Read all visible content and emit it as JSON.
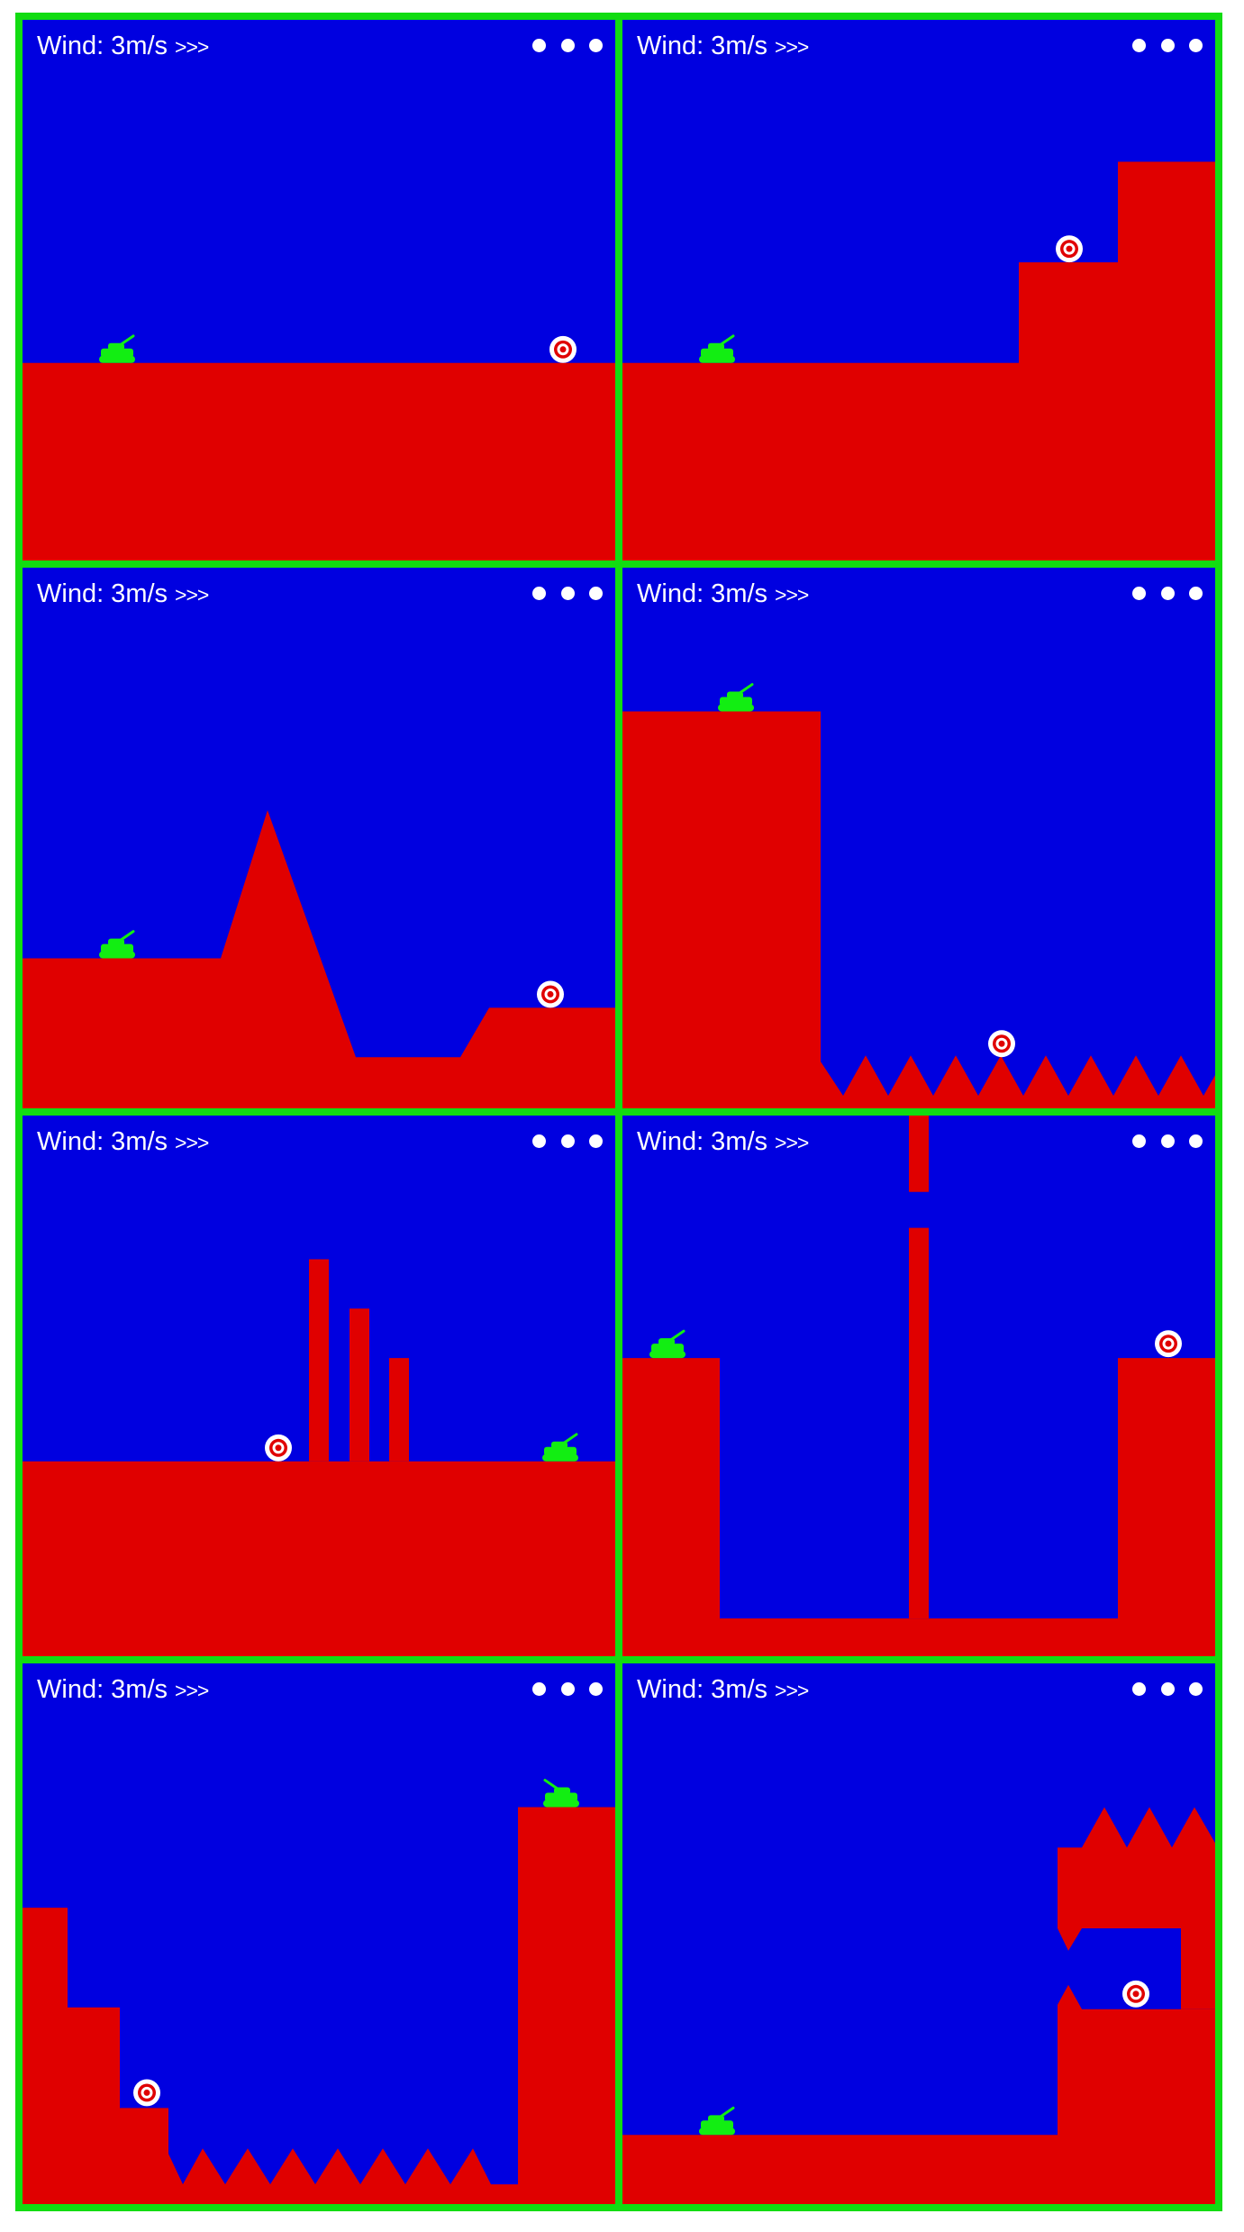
{
  "colors": {
    "border": "#12dc12",
    "sky": "#0000e0",
    "terrain": "#e00000",
    "tank": "#12ee12",
    "target_outer": "#ffffff",
    "target_ring": "#e00000",
    "hud_text": "#ffffff"
  },
  "hud": {
    "wind_label": "Wind: 3m/s",
    "wind_direction": ">>>",
    "menu_icon": "three-dots-menu-icon"
  },
  "levels": [
    {
      "id": 1,
      "tank_facing": "right"
    },
    {
      "id": 2,
      "tank_facing": "right"
    },
    {
      "id": 3,
      "tank_facing": "right"
    },
    {
      "id": 4,
      "tank_facing": "right"
    },
    {
      "id": 5,
      "tank_facing": "right"
    },
    {
      "id": 6,
      "tank_facing": "right"
    },
    {
      "id": 7,
      "tank_facing": "left"
    },
    {
      "id": 8,
      "tank_facing": "right"
    }
  ]
}
